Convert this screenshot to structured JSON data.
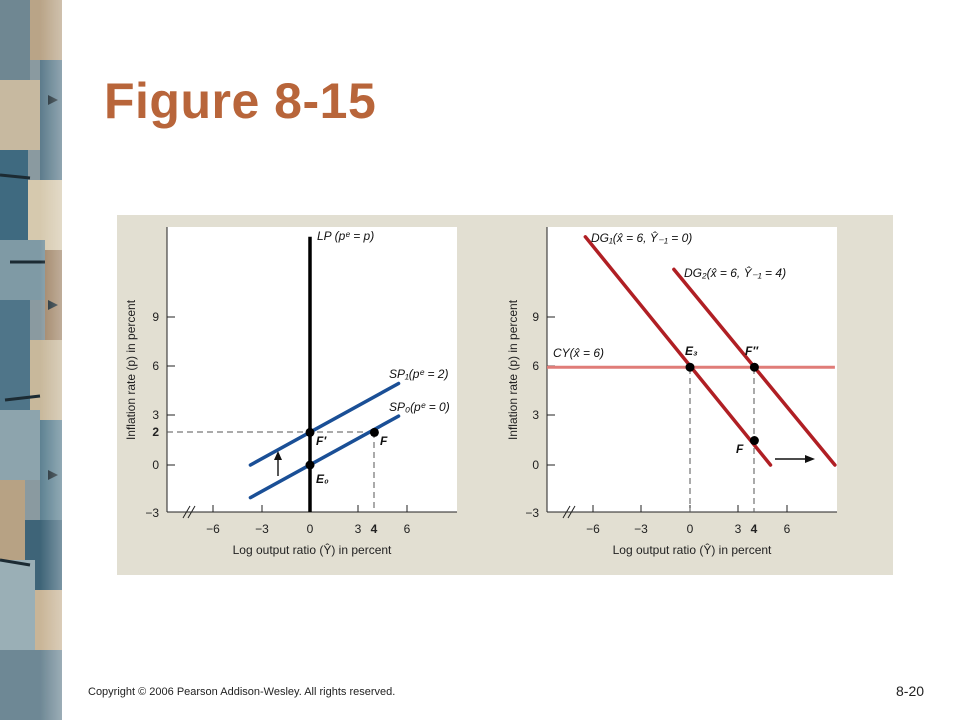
{
  "slide": {
    "title": "Figure 8-15",
    "copyright": "Copyright © 2006 Pearson Addison-Wesley. All rights reserved.",
    "slide_number": "8-20"
  },
  "chart_data": [
    {
      "type": "line",
      "xlabel": "Log output ratio (Ŷ) in percent",
      "ylabel": "Inflation rate (p) in percent",
      "x_ticks": [
        "−6",
        "−3",
        "0",
        "3",
        "4",
        "6"
      ],
      "y_ticks": [
        "−3",
        "0",
        "2",
        "3",
        "6",
        "9"
      ],
      "series": [
        {
          "name": "LP (pᵉ = p)",
          "label": "LP (pᵉ = p)",
          "color": "#000000",
          "points": [
            [
              0,
              -3
            ],
            [
              0,
              14
            ]
          ]
        },
        {
          "name": "SP₁(pᵉ = 2)",
          "label": "SP₁(pᵉ = 2)",
          "color": "#1a4f96",
          "points": [
            [
              -3.7,
              0
            ],
            [
              5.5,
              5
            ]
          ]
        },
        {
          "name": "SP₀(pᵉ = 0)",
          "label": "SP₀(pᵉ = 0)",
          "color": "#1a4f96",
          "points": [
            [
              -3.7,
              -2
            ],
            [
              5.5,
              3
            ]
          ]
        }
      ],
      "points": [
        {
          "label": "E₀",
          "x": 0,
          "y": 0
        },
        {
          "label": "F′",
          "x": 0,
          "y": 2
        },
        {
          "label": "F",
          "x": 4,
          "y": 2
        }
      ]
    },
    {
      "type": "line",
      "xlabel": "Log output ratio (Ŷ) in percent",
      "ylabel": "Inflation rate (p) in percent",
      "x_ticks": [
        "−6",
        "−3",
        "0",
        "3",
        "4",
        "6"
      ],
      "y_ticks": [
        "−3",
        "0",
        "3",
        "6",
        "9"
      ],
      "series": [
        {
          "name": "DG₁(x̂ = 6, Ŷ₋₁ = 0)",
          "label": "DG₁(x̂ = 6, Ŷ₋₁ = 0)",
          "color": "#b01f24",
          "points": [
            [
              -6.5,
              14
            ],
            [
              5,
              0
            ]
          ]
        },
        {
          "name": "DG₂(x̂ = 6, Ŷ₋₁ = 4)",
          "label": "DG₂(x̂ = 6, Ŷ₋₁ = 4)",
          "color": "#b01f24",
          "points": [
            [
              -1,
              12
            ],
            [
              9,
              0
            ]
          ]
        },
        {
          "name": "CY(x̂ = 6)",
          "label": "CY(x̂ = 6)",
          "color": "#e07c78",
          "points": [
            [
              -9,
              6
            ],
            [
              9,
              6
            ]
          ]
        }
      ],
      "points": [
        {
          "label": "E₃",
          "x": 0,
          "y": 6
        },
        {
          "label": "F″",
          "x": 4,
          "y": 6
        },
        {
          "label": "F",
          "x": 4,
          "y": 1.5
        }
      ]
    }
  ]
}
